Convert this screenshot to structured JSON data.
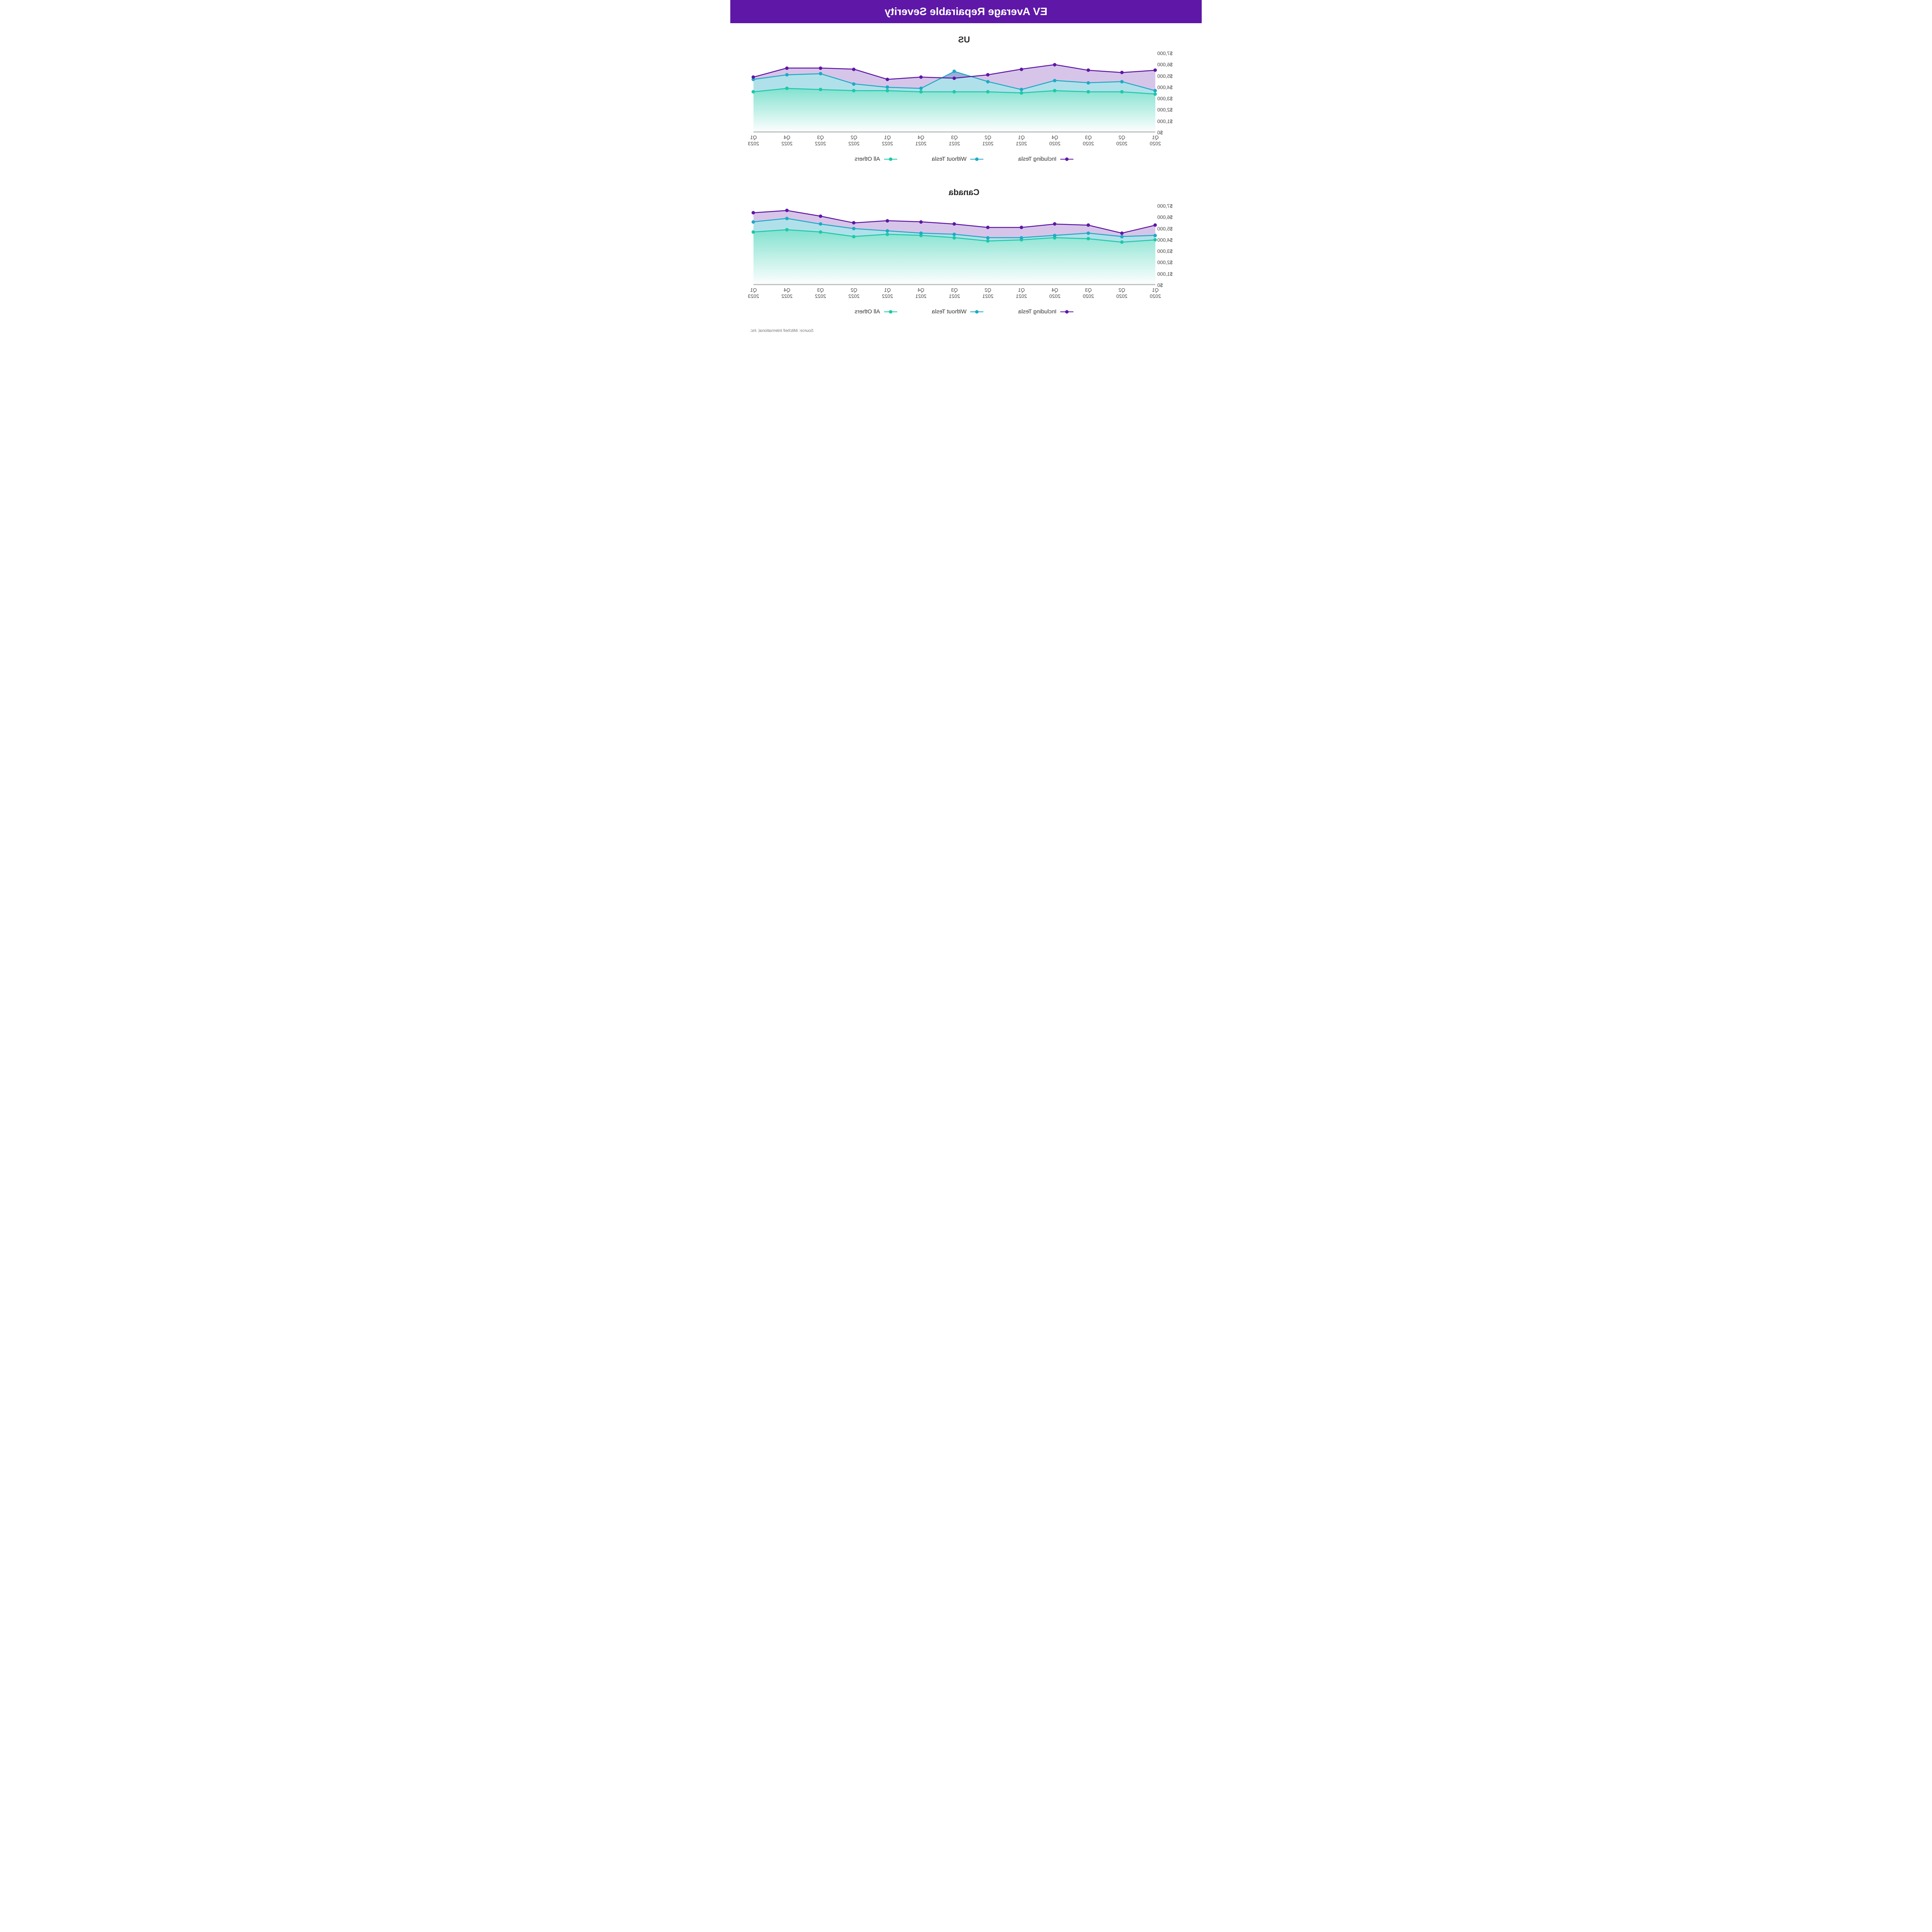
{
  "header": {
    "title": "EV Average Repairable Severity"
  },
  "categories": [
    "Q1 2020",
    "Q2 2020",
    "Q3 2020",
    "Q4 2020",
    "Q1 2021",
    "Q2 2021",
    "Q3 2021",
    "Q4 2021",
    "Q1 2022",
    "Q2 2022",
    "Q3 2022",
    "Q4 2022",
    "Q1 2023"
  ],
  "y_axis": {
    "min": 0,
    "max": 7000,
    "step": 1000,
    "labels": [
      "$0",
      "$1,000",
      "$2,000",
      "$3,000",
      "$4,000",
      "$5,000",
      "$6,000",
      "$7,000"
    ]
  },
  "series_style": {
    "including_tesla": {
      "color": "#5e17a6",
      "fill": "rgba(94,23,166,0.25)"
    },
    "without_tesla": {
      "color": "#1daac4",
      "fill": "rgba(29,170,196,0.35)"
    },
    "all_others": {
      "color": "#1cc9a8",
      "fill_top": "rgba(28,201,168,0.55)",
      "fill_bottom": "rgba(28,201,168,0.0)"
    }
  },
  "baseline_color": "#bfbfbf",
  "marker_radius": 4.5,
  "line_width": 2.5,
  "charts": [
    {
      "title": "US",
      "series": {
        "including_tesla": [
          5500,
          5300,
          5500,
          6000,
          5600,
          5100,
          4800,
          4900,
          4700,
          5600,
          5700,
          5700,
          4900
        ],
        "without_tesla": [
          3700,
          4500,
          4400,
          4600,
          3800,
          4500,
          5400,
          3900,
          4000,
          4300,
          5200,
          5100,
          4700
        ],
        "all_others": [
          3400,
          3600,
          3600,
          3700,
          3500,
          3600,
          3600,
          3600,
          3700,
          3700,
          3800,
          3900,
          3600
        ]
      }
    },
    {
      "title": "Canada",
      "series": {
        "including_tesla": [
          5300,
          4600,
          5300,
          5400,
          5100,
          5100,
          5400,
          5600,
          5700,
          5500,
          6100,
          6600,
          6400
        ],
        "without_tesla": [
          4400,
          4300,
          4600,
          4400,
          4200,
          4200,
          4500,
          4600,
          4800,
          5000,
          5400,
          5900,
          5600
        ],
        "all_others": [
          4000,
          3800,
          4100,
          4200,
          4000,
          3900,
          4200,
          4400,
          4500,
          4300,
          4700,
          4900,
          4700
        ]
      }
    }
  ],
  "legend": {
    "including_tesla": "Including Tesla",
    "without_tesla": "Without Tesla",
    "all_others": "All Others"
  },
  "source": "Source: Mitchell International, Inc."
}
